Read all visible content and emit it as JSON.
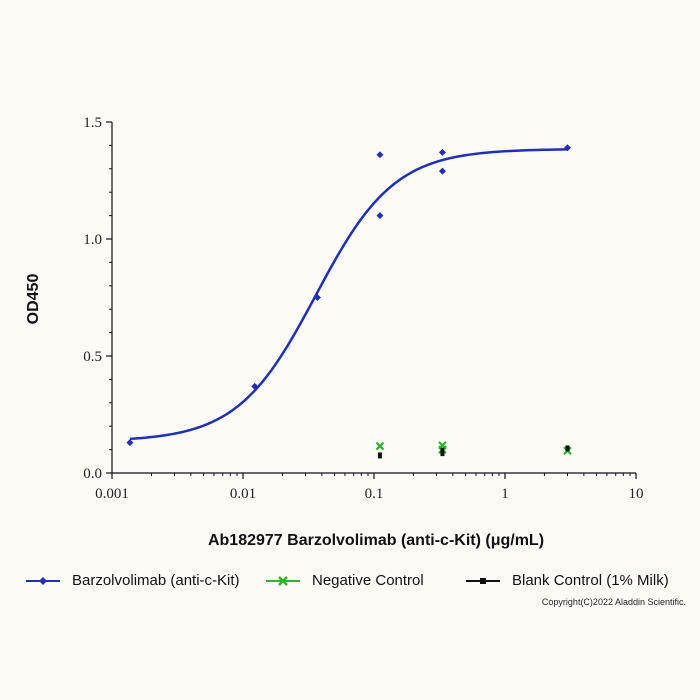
{
  "chart_data": {
    "type": "scatter",
    "title": "",
    "xlabel": "Ab182977 Barzolvolimab (anti-c-Kit) (μg/mL)",
    "ylabel": "OD450",
    "xscale": "log",
    "xlim": [
      0.001,
      10
    ],
    "ylim": [
      0,
      1.5
    ],
    "x_ticks": [
      0.001,
      0.01,
      0.1,
      1,
      10
    ],
    "x_tick_labels": [
      "0.001",
      "0.01",
      "0.1",
      "1",
      "10"
    ],
    "y_ticks": [
      0,
      0.5,
      1.0,
      1.5
    ],
    "y_tick_labels": [
      "0.0",
      "0.5",
      "1.0",
      "1.5"
    ],
    "grid": false,
    "legend_position": "bottom",
    "series": [
      {
        "name": "Barzolvolimab (anti-c-Kit)",
        "color": "#1f2fb8",
        "marker": "diamond",
        "points": [
          {
            "x": 0.00137,
            "y": 0.13
          },
          {
            "x": 0.0123,
            "y": 0.37
          },
          {
            "x": 0.037,
            "y": 0.75
          },
          {
            "x": 0.111,
            "y": 1.36
          },
          {
            "x": 0.111,
            "y": 1.1
          },
          {
            "x": 0.333,
            "y": 1.37
          },
          {
            "x": 0.333,
            "y": 1.29
          },
          {
            "x": 3.0,
            "y": 1.39
          }
        ],
        "fit": {
          "bottom": 0.135,
          "top": 1.385,
          "ec50": 0.036,
          "hill": 1.45
        }
      },
      {
        "name": "Negative Control",
        "color": "#2cb52c",
        "marker": "x",
        "points": [
          {
            "x": 0.111,
            "y": 0.115
          },
          {
            "x": 0.333,
            "y": 0.118
          },
          {
            "x": 0.333,
            "y": 0.1
          },
          {
            "x": 3.0,
            "y": 0.095
          }
        ]
      },
      {
        "name": "Blank Control (1% Milk)",
        "color": "#111111",
        "marker": "dash",
        "points": [
          {
            "x": 0.111,
            "y": 0.075
          },
          {
            "x": 0.333,
            "y": 0.085
          },
          {
            "x": 0.333,
            "y": 0.095
          },
          {
            "x": 3.0,
            "y": 0.105
          }
        ]
      }
    ]
  },
  "copyright": "Copyright(C)2022 Aladdin Scientific."
}
